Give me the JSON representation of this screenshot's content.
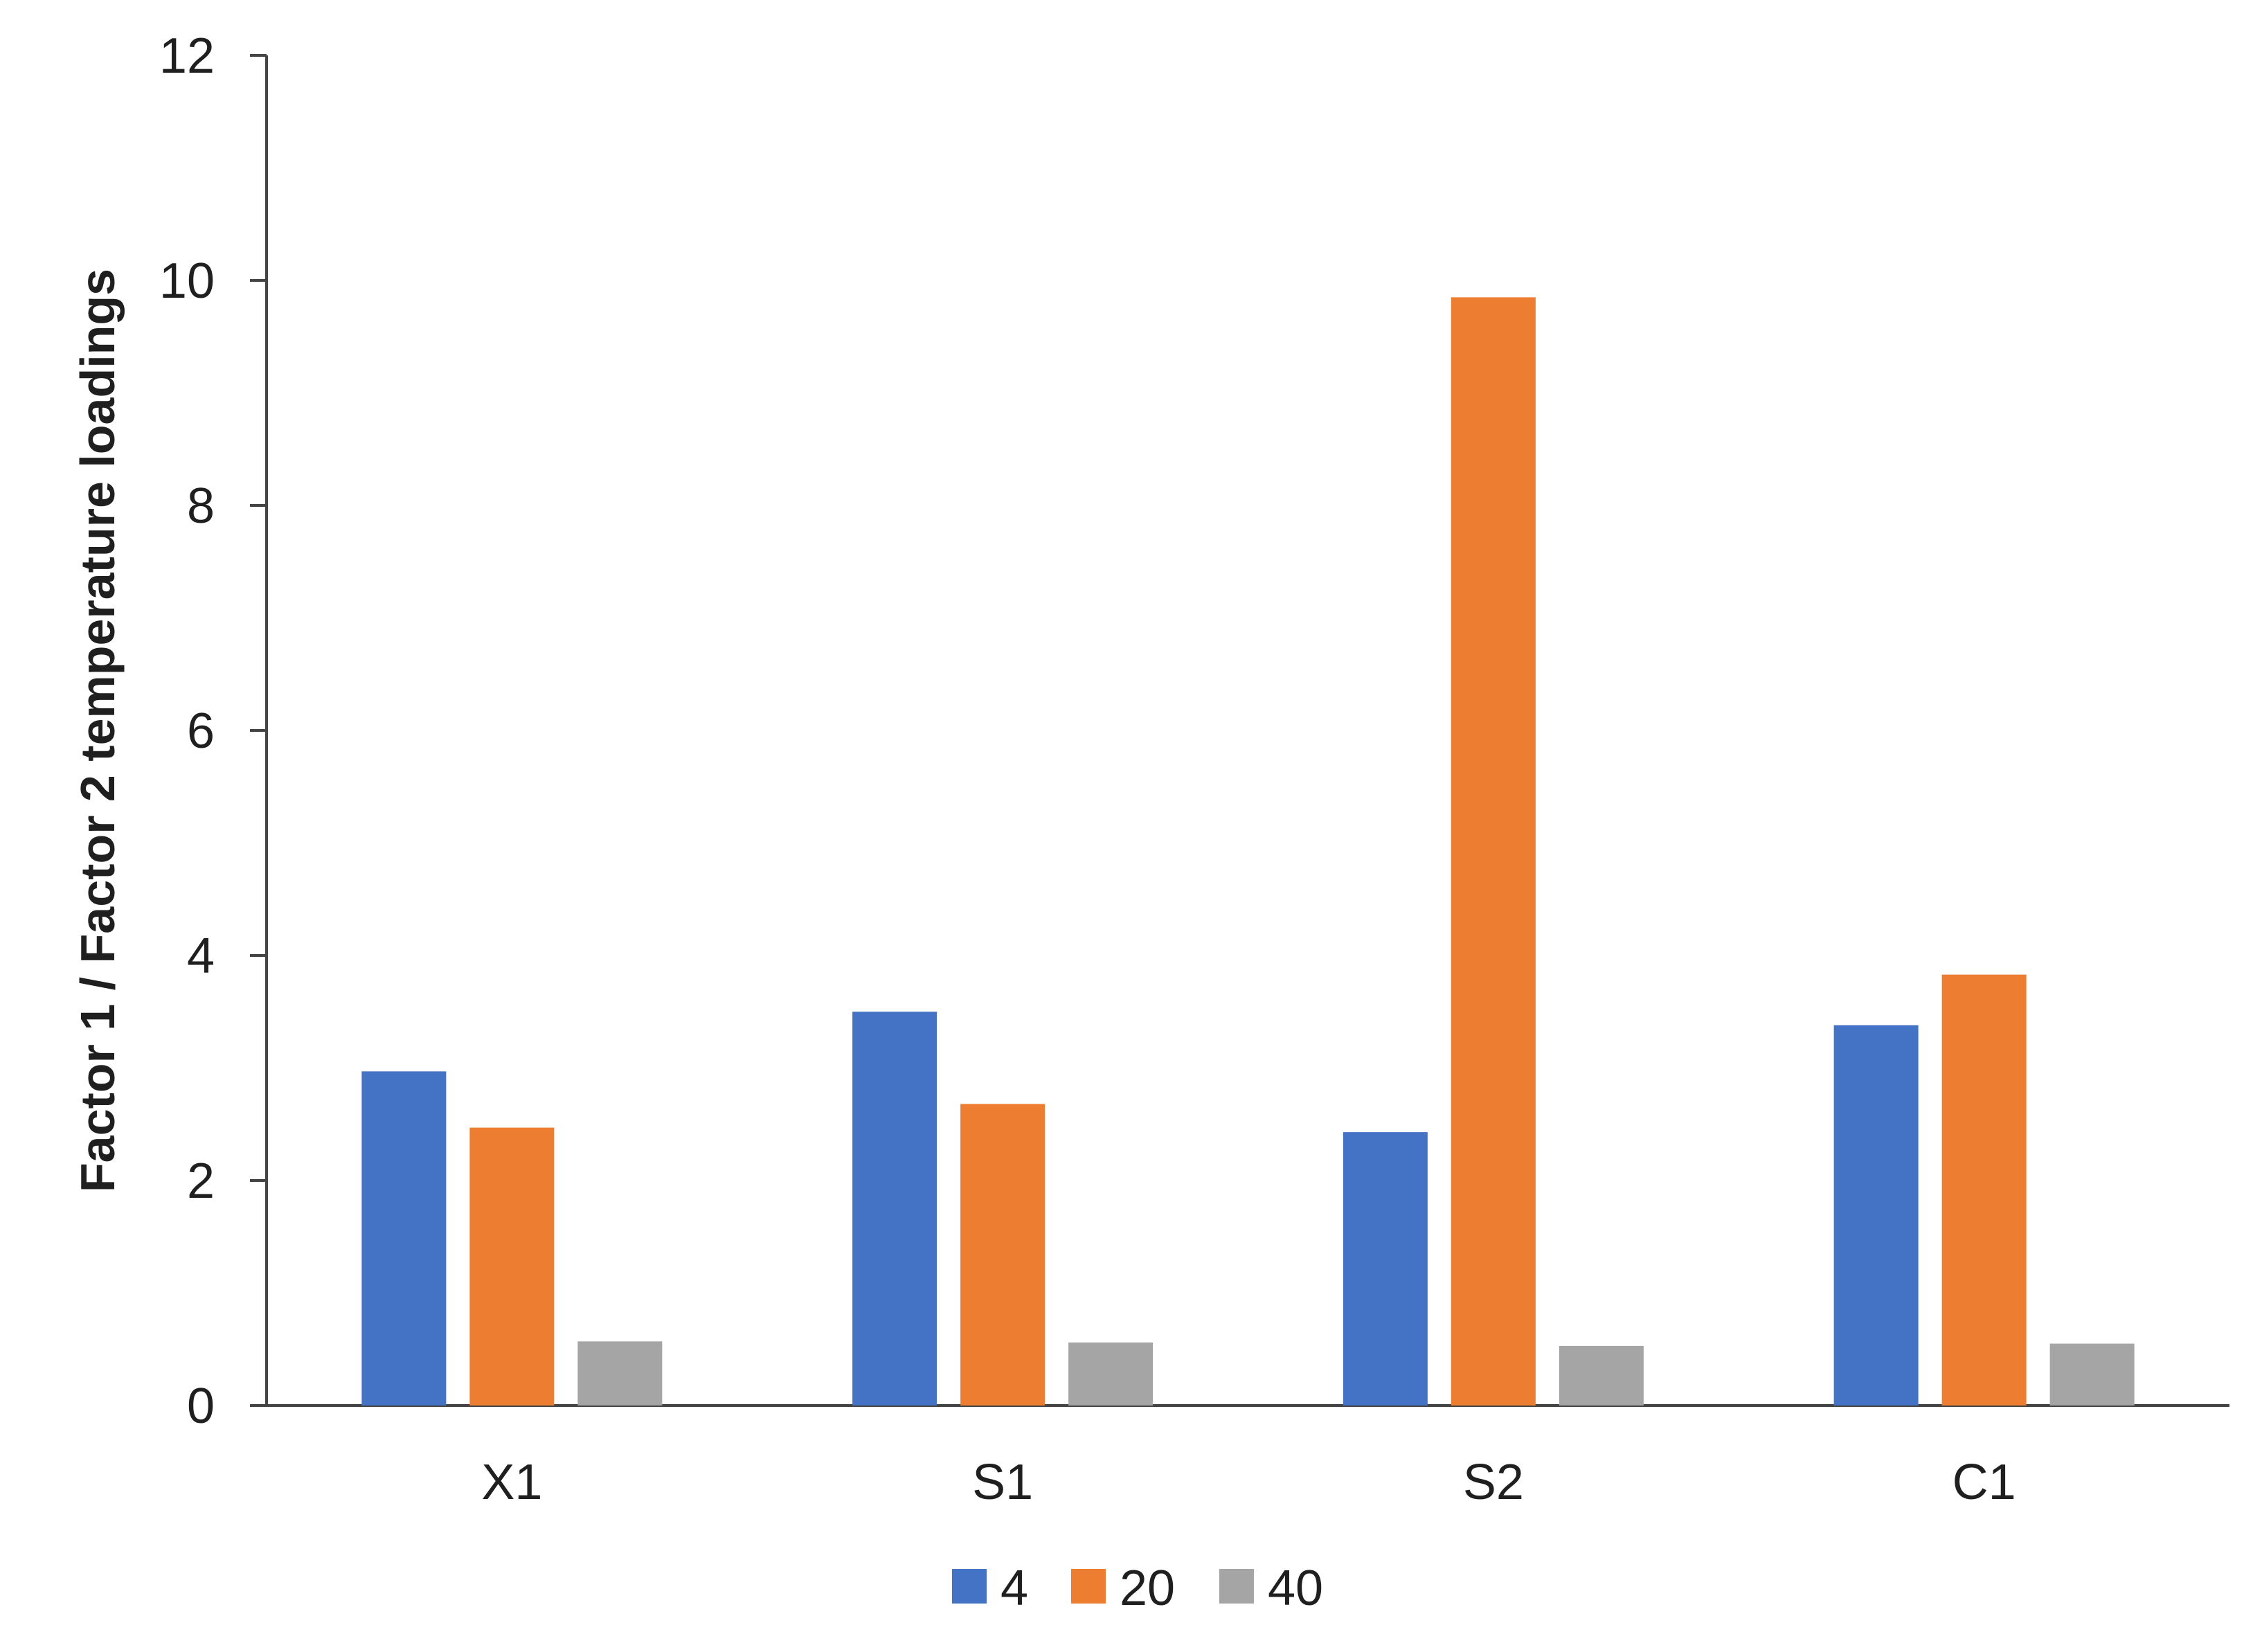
{
  "chart_data": {
    "type": "bar",
    "title": "",
    "xlabel": "",
    "ylabel": "Factor 1 /  Factor 2 temperature loadings",
    "ylim": [
      0,
      12
    ],
    "yticks": [
      0,
      2,
      4,
      6,
      8,
      10,
      12
    ],
    "categories": [
      "X1",
      "S1",
      "S2",
      "C1"
    ],
    "series": [
      {
        "name": "4",
        "color": "#4472C4",
        "values": [
          2.97,
          3.5,
          2.43,
          3.38
        ]
      },
      {
        "name": "20",
        "color": "#ED7D31",
        "values": [
          2.47,
          2.68,
          9.85,
          3.83
        ]
      },
      {
        "name": "40",
        "color": "#A5A5A5",
        "values": [
          0.57,
          0.56,
          0.53,
          0.55
        ]
      }
    ],
    "grid": false,
    "legend": "bottom"
  }
}
